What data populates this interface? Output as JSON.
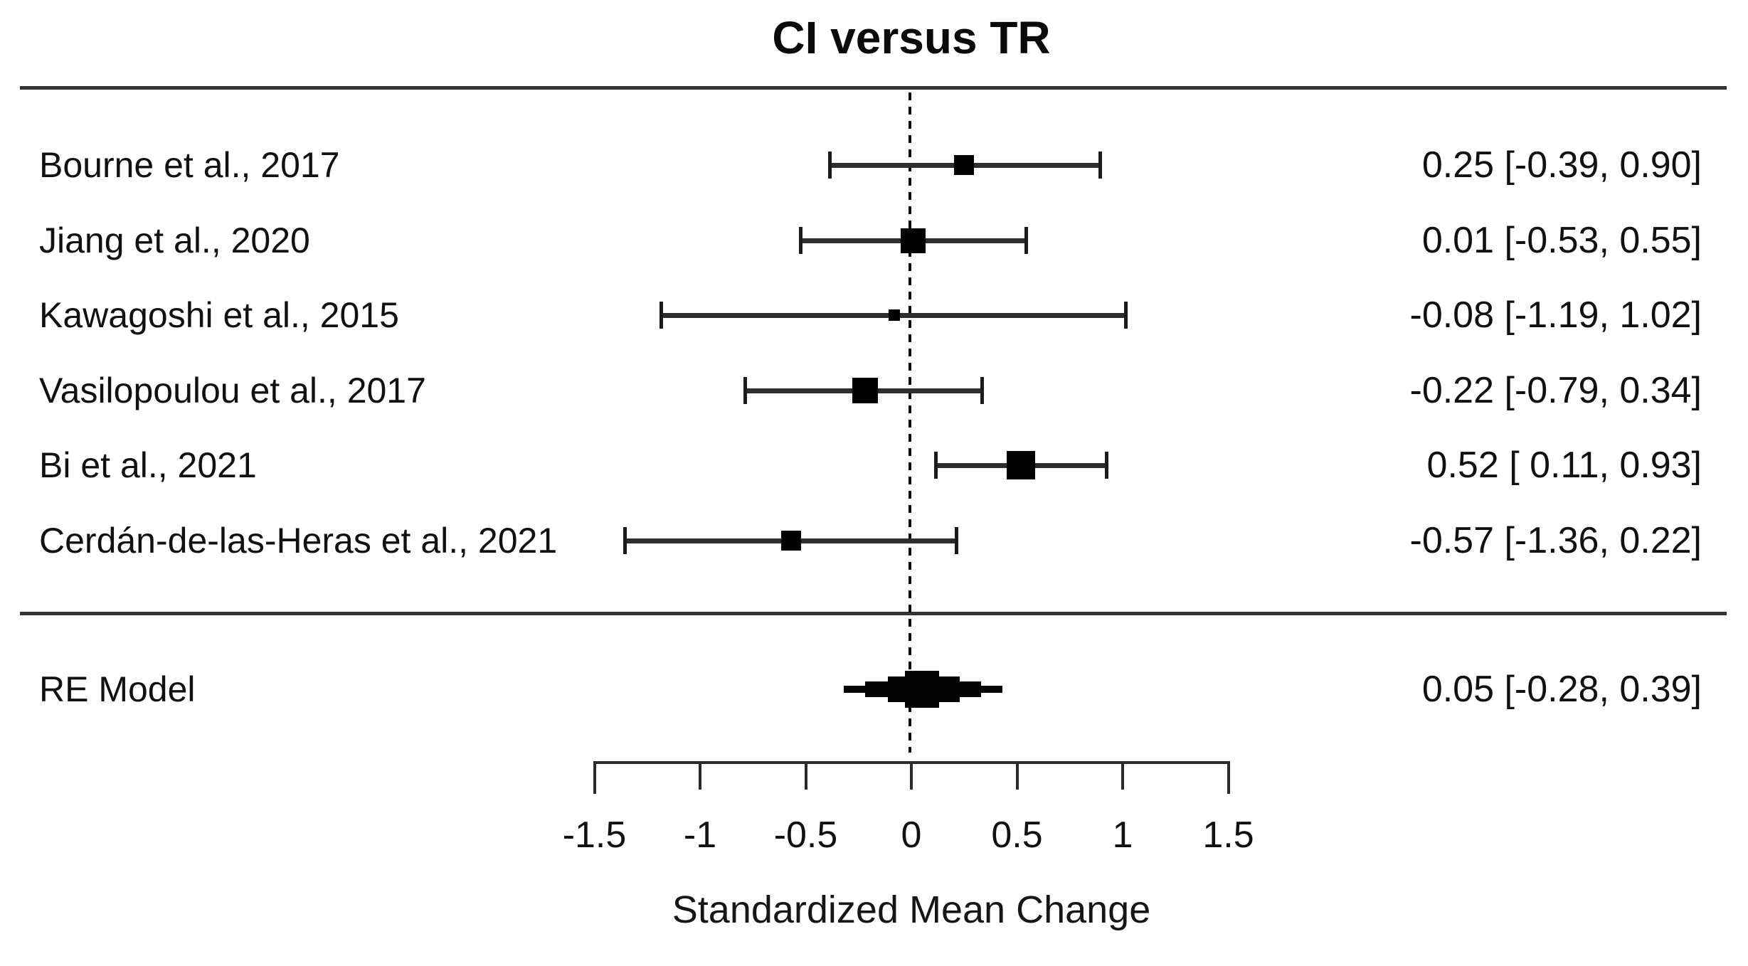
{
  "chart_data": {
    "type": "forest",
    "title": "CI versus TR",
    "xlabel": "Standardized Mean Change",
    "xlim": [
      -1.5,
      1.5
    ],
    "x_ticks": [
      {
        "value": -1.5,
        "label": "-1.5"
      },
      {
        "value": -1.0,
        "label": "-1"
      },
      {
        "value": -0.5,
        "label": "-0.5"
      },
      {
        "value": 0.0,
        "label": "0"
      },
      {
        "value": 0.5,
        "label": "0.5"
      },
      {
        "value": 1.0,
        "label": "1"
      },
      {
        "value": 1.5,
        "label": "1.5"
      }
    ],
    "zero_reference_line": 0,
    "studies": [
      {
        "label": "Bourne et al., 2017",
        "estimate": 0.25,
        "ci_lower": -0.39,
        "ci_upper": 0.9,
        "annotation": "0.25 [-0.39, 0.90]",
        "marker_size": 28
      },
      {
        "label": "Jiang et al., 2020",
        "estimate": 0.01,
        "ci_lower": -0.53,
        "ci_upper": 0.55,
        "annotation": "0.01 [-0.53, 0.55]",
        "marker_size": 35
      },
      {
        "label": "Kawagoshi et al., 2015",
        "estimate": -0.08,
        "ci_lower": -1.19,
        "ci_upper": 1.02,
        "annotation": "-0.08 [-1.19, 1.02]",
        "marker_size": 16
      },
      {
        "label": "Vasilopoulou et al., 2017",
        "estimate": -0.22,
        "ci_lower": -0.79,
        "ci_upper": 0.34,
        "annotation": "-0.22 [-0.79, 0.34]",
        "marker_size": 36
      },
      {
        "label": "Bi et al., 2021",
        "estimate": 0.52,
        "ci_lower": 0.11,
        "ci_upper": 0.93,
        "annotation": "0.52 [ 0.11, 0.93]",
        "marker_size": 40
      },
      {
        "label": "Cerdán-de-las-Heras et al., 2021",
        "estimate": -0.57,
        "ci_lower": -1.36,
        "ci_upper": 0.22,
        "annotation": "-0.57 [-1.36, 0.22]",
        "marker_size": 28
      }
    ],
    "summary": {
      "label": "RE Model",
      "estimate": 0.05,
      "ci_lower": -0.28,
      "ci_upper": 0.39,
      "annotation": "0.05 [-0.28, 0.39]"
    }
  }
}
